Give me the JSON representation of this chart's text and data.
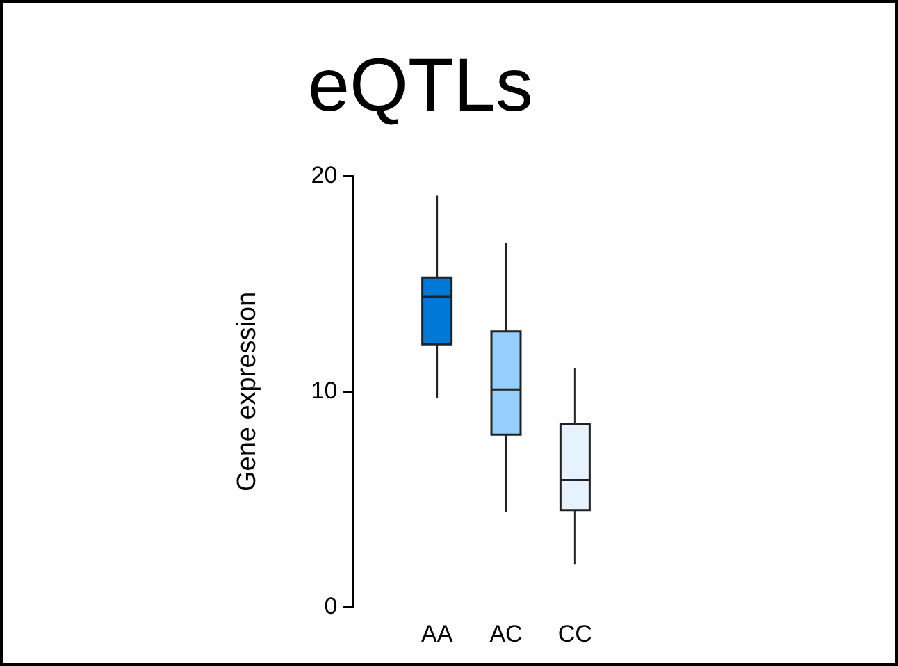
{
  "chart_data": {
    "type": "box",
    "title": "eQTLs",
    "ylabel": "Gene expression",
    "categories": [
      "AA",
      "AC",
      "CC"
    ],
    "boxes": [
      {
        "low": 9.7,
        "q1": 12.2,
        "median": 14.4,
        "q3": 15.3,
        "high": 19.1
      },
      {
        "low": 4.4,
        "q1": 8.0,
        "median": 10.1,
        "q3": 12.8,
        "high": 16.9
      },
      {
        "low": 2.0,
        "q1": 4.5,
        "median": 5.9,
        "q3": 8.5,
        "high": 11.1
      }
    ],
    "colors": [
      "#0078d7",
      "#94d0fb",
      "#e6f3fe"
    ],
    "ylim": [
      0,
      20
    ],
    "yticks": [
      0,
      10,
      20
    ]
  }
}
